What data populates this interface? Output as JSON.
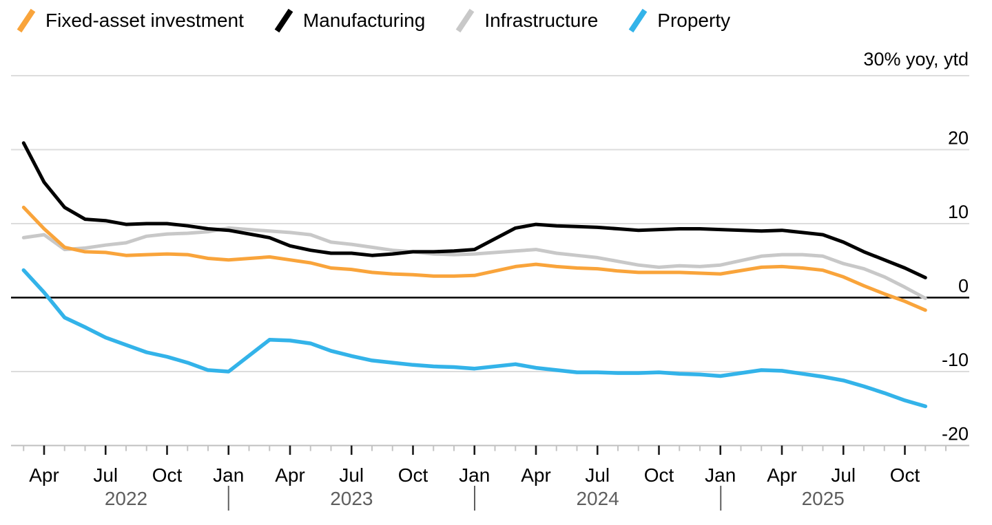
{
  "legend": {
    "items": [
      {
        "label": "Fixed-asset investment",
        "color": "#F9A43B"
      },
      {
        "label": "Manufacturing",
        "color": "#000000"
      },
      {
        "label": "Infrastructure",
        "color": "#C8C8C8"
      },
      {
        "label": "Property",
        "color": "#33B3E9"
      }
    ]
  },
  "chart_data": {
    "type": "line",
    "title": "",
    "unit_label": "30% yoy, ytd",
    "ylabel": "% yoy, ytd",
    "ylim": [
      -20,
      30
    ],
    "y_ticks": [
      20,
      10,
      0,
      -10,
      -20
    ],
    "y_gridlines": [
      30,
      20,
      10,
      0,
      -10,
      -20
    ],
    "zero_line": 0,
    "grid": "horizontal",
    "legend_position": "top",
    "x_months": [
      "Feb 2022",
      "Mar 2022",
      "Apr 2022",
      "May 2022",
      "Jun 2022",
      "Jul 2022",
      "Aug 2022",
      "Sep 2022",
      "Oct 2022",
      "Nov 2022",
      "Dec 2022",
      "Feb 2023",
      "Mar 2023",
      "Apr 2023",
      "May 2023",
      "Jun 2023",
      "Jul 2023",
      "Aug 2023",
      "Sep 2023",
      "Oct 2023",
      "Nov 2023",
      "Dec 2023",
      "Feb 2024",
      "Mar 2024",
      "Apr 2024",
      "May 2024",
      "Jun 2024",
      "Jul 2024",
      "Aug 2024",
      "Sep 2024",
      "Oct 2024",
      "Nov 2024",
      "Dec 2024",
      "Feb 2025",
      "Mar 2025",
      "Apr 2025",
      "May 2025",
      "Jun 2025",
      "Jul 2025",
      "Aug 2025",
      "Sep 2025",
      "Oct 2025"
    ],
    "series": [
      {
        "name": "Fixed-asset investment",
        "color": "#F9A43B",
        "width": 5,
        "values": [
          12.2,
          9.3,
          6.8,
          6.2,
          6.1,
          5.7,
          5.8,
          5.9,
          5.8,
          5.3,
          5.1,
          5.5,
          5.1,
          4.7,
          4.0,
          3.8,
          3.4,
          3.2,
          3.1,
          2.9,
          2.9,
          3.0,
          4.2,
          4.5,
          4.2,
          4.0,
          3.9,
          3.6,
          3.4,
          3.4,
          3.4,
          3.3,
          3.2,
          4.1,
          4.2,
          4.0,
          3.7,
          2.8,
          1.6,
          0.5,
          -0.5,
          -1.7
        ]
      },
      {
        "name": "Manufacturing",
        "color": "#000000",
        "width": 5,
        "values": [
          20.9,
          15.6,
          12.2,
          10.6,
          10.4,
          9.9,
          10.0,
          10.0,
          9.7,
          9.3,
          9.1,
          8.1,
          7.0,
          6.4,
          6.0,
          6.0,
          5.7,
          5.9,
          6.2,
          6.2,
          6.3,
          6.5,
          9.4,
          9.9,
          9.7,
          9.6,
          9.5,
          9.3,
          9.1,
          9.2,
          9.3,
          9.3,
          9.2,
          9.0,
          9.1,
          8.8,
          8.5,
          7.5,
          6.2,
          5.1,
          4.0,
          2.7
        ]
      },
      {
        "name": "Infrastructure",
        "color": "#C8C8C8",
        "width": 5,
        "values": [
          8.1,
          8.5,
          6.5,
          6.7,
          7.1,
          7.4,
          8.3,
          8.6,
          8.7,
          8.9,
          9.4,
          9.0,
          8.8,
          8.5,
          7.5,
          7.2,
          6.8,
          6.4,
          6.2,
          5.9,
          5.8,
          5.9,
          6.3,
          6.5,
          6.0,
          5.7,
          5.4,
          4.9,
          4.4,
          4.1,
          4.3,
          4.2,
          4.4,
          5.6,
          5.8,
          5.8,
          5.6,
          4.6,
          3.9,
          2.8,
          1.4,
          -0.1
        ]
      },
      {
        "name": "Property",
        "color": "#33B3E9",
        "width": 5.5,
        "values": [
          3.7,
          0.7,
          -2.7,
          -4.0,
          -5.4,
          -6.4,
          -7.4,
          -8.0,
          -8.8,
          -9.8,
          -10.0,
          -5.7,
          -5.8,
          -6.2,
          -7.2,
          -7.9,
          -8.5,
          -8.8,
          -9.1,
          -9.3,
          -9.4,
          -9.6,
          -9.0,
          -9.5,
          -9.8,
          -10.1,
          -10.1,
          -10.2,
          -10.2,
          -10.1,
          -10.3,
          -10.4,
          -10.6,
          -9.8,
          -9.9,
          -10.3,
          -10.7,
          -11.2,
          -12.0,
          -12.9,
          -13.9,
          -14.7
        ]
      }
    ],
    "x_axis": {
      "major_tick_labels": [
        "Apr",
        "Jul",
        "Oct",
        "Jan",
        "Apr",
        "Jul",
        "Oct",
        "Jan",
        "Apr",
        "Jul",
        "Oct",
        "Jan",
        "Apr",
        "Jul",
        "Oct"
      ],
      "major_months": {
        "1": "Jan",
        "4": "Apr",
        "7": "Jul",
        "10": "Oct"
      },
      "years": [
        "2022",
        "2023",
        "2024",
        "2025"
      ]
    }
  }
}
